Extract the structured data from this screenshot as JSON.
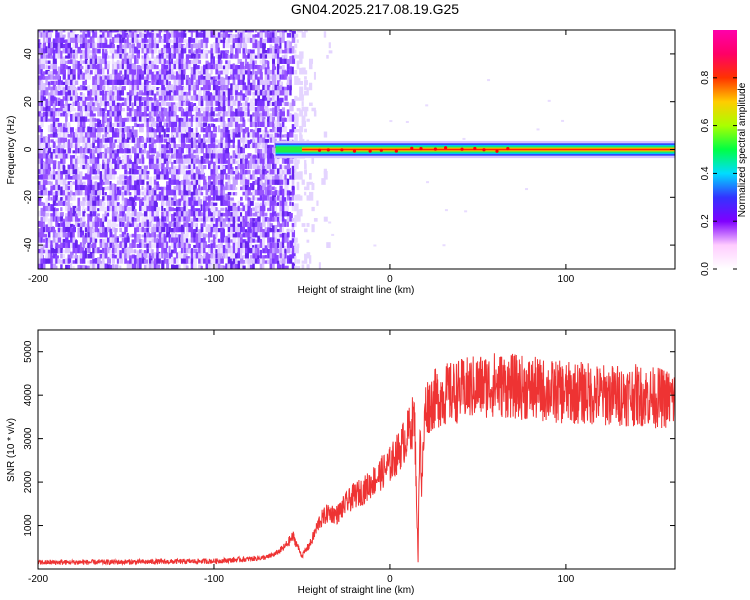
{
  "title": "GN04.2025.217.08.19.G25",
  "colors": {
    "snr_line": "#ee3333",
    "spectrogram_noise": "#7a33ff",
    "colorbar": [
      "#ffffff",
      "#ffccff",
      "#7f00ff",
      "#3333ff",
      "#00ddff",
      "#00ff44",
      "#aaff00",
      "#ffcc00",
      "#ff3300",
      "#ff0066",
      "#ff00aa"
    ]
  },
  "chart_data": [
    {
      "type": "heatmap",
      "id": "spectrogram",
      "xlabel": "Height of straight line (km)",
      "ylabel": "Frequency (Hz)",
      "xlim": [
        -200,
        162
      ],
      "ylim": [
        -50,
        50
      ],
      "xticks": [
        -200,
        -100,
        0,
        100
      ],
      "yticks": [
        -40,
        -20,
        0,
        20,
        40
      ],
      "grid": false,
      "colorbar": {
        "label": "Normalized spectral amplitude",
        "range": [
          0,
          1
        ],
        "ticks": [
          0.0,
          0.2,
          0.4,
          0.6,
          0.8
        ]
      },
      "regions": {
        "noise_x_range": [
          -200,
          -50
        ],
        "signal_x_range": [
          -65,
          162
        ],
        "signal_frequency_hz": 0
      }
    },
    {
      "type": "line",
      "id": "snr",
      "xlabel": "Height of straight line (km)",
      "ylabel": "SNR (10 * v/v)",
      "xlim": [
        -200,
        162
      ],
      "ylim": [
        0,
        5500
      ],
      "xticks": [
        -200,
        -100,
        0,
        100
      ],
      "yticks": [
        1000,
        2000,
        3000,
        4000,
        5000
      ],
      "grid": false,
      "series": [
        {
          "x": [
            -200,
            -150,
            -100,
            -80,
            -70,
            -65,
            -60,
            -55,
            -50,
            -45,
            -40,
            -35,
            -30,
            -25,
            -20,
            -15,
            -10,
            -5,
            0,
            5,
            10,
            14,
            16,
            17,
            18,
            20,
            25,
            30,
            40,
            50,
            60,
            70,
            80,
            90,
            100,
            110,
            120,
            130,
            140,
            150,
            162
          ],
          "values": [
            150,
            160,
            180,
            230,
            270,
            350,
            500,
            750,
            300,
            600,
            1100,
            1300,
            1250,
            1500,
            1700,
            1800,
            2000,
            2200,
            2400,
            2700,
            3100,
            3500,
            200,
            3600,
            1800,
            3700,
            3900,
            4000,
            4100,
            4200,
            4250,
            4200,
            4150,
            4100,
            4050,
            4050,
            4000,
            4000,
            4000,
            3950,
            3900
          ]
        }
      ]
    }
  ]
}
